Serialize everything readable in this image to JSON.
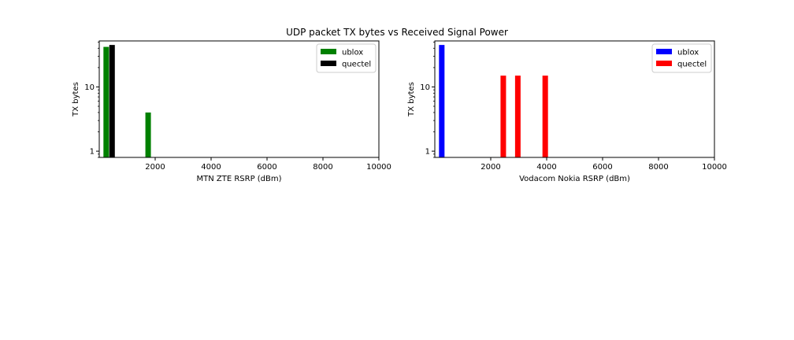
{
  "figure": {
    "suptitle": "UDP packet TX bytes vs Received Signal Power"
  },
  "chart_data": [
    {
      "type": "bar",
      "title": "",
      "xlabel": "MTN ZTE RSRP (dBm)",
      "ylabel": "TX bytes",
      "xlim": [
        0,
        10000
      ],
      "ylim": [
        0.8,
        52
      ],
      "yscale": "log",
      "x_ticks": [
        2000,
        4000,
        6000,
        8000,
        10000
      ],
      "y_ticks": [
        1,
        10
      ],
      "grid": false,
      "legend": "top-right",
      "series": [
        {
          "name": "ublox",
          "color": "#008000",
          "bars": [
            {
              "x": 150,
              "value": 42
            },
            {
              "x": 1650,
              "value": 4
            }
          ]
        },
        {
          "name": "quectel",
          "color": "#000000",
          "bars": [
            {
              "x": 360,
              "value": 45
            }
          ]
        }
      ]
    },
    {
      "type": "bar",
      "title": "",
      "xlabel": "Vodacom Nokia RSRP (dBm)",
      "ylabel": "TX bytes",
      "xlim": [
        0,
        10000
      ],
      "ylim": [
        0.8,
        52
      ],
      "yscale": "log",
      "x_ticks": [
        2000,
        4000,
        6000,
        8000,
        10000
      ],
      "y_ticks": [
        1,
        10
      ],
      "grid": false,
      "legend": "top-right",
      "series": [
        {
          "name": "ublox",
          "color": "#0000ff",
          "bars": [
            {
              "x": 150,
              "value": 45
            }
          ]
        },
        {
          "name": "quectel",
          "color": "#ff0000",
          "bars": [
            {
              "x": 2350,
              "value": 15
            },
            {
              "x": 2870,
              "value": 15
            },
            {
              "x": 3850,
              "value": 15
            }
          ]
        }
      ]
    }
  ]
}
